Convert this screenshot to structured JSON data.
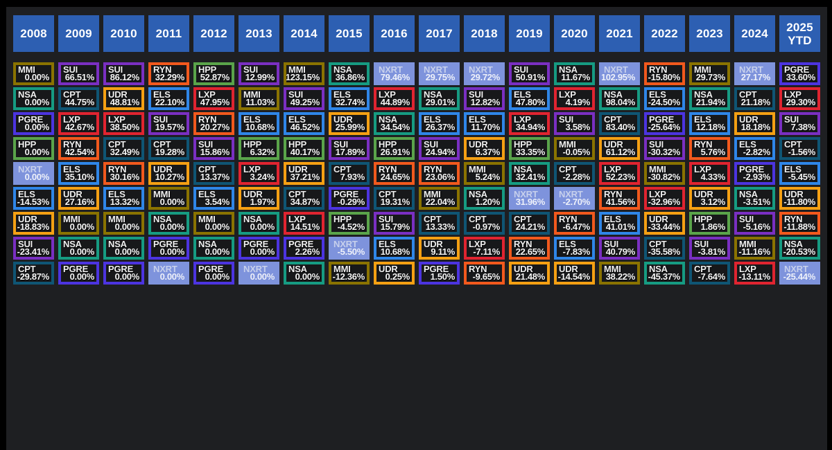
{
  "chart_data": {
    "type": "table",
    "description": "Annual total-return ranking heatmap (periodic table of returns) for REIT tickers by year",
    "highlight_ticker": "NXRT",
    "colors": {
      "MMI": "#8a7300",
      "SUI": "#7a2fc2",
      "RYN": "#f2591d",
      "HPP": "#5aa44a",
      "NSA": "#169b82",
      "CPT": "#0f5574",
      "UDR": "#f5a013",
      "ELS": "#2f86e8",
      "LXP": "#e02430",
      "PGRE": "#4c34e0",
      "NXRT": "#7e93dc"
    },
    "header_bg": "#2d5fb2",
    "panel_bg": "#1e1f22",
    "cell_bg": "#17181a",
    "columns": [
      {
        "year": "2008",
        "cells": [
          {
            "t": "MMI",
            "v": "0.00%"
          },
          {
            "t": "NSA",
            "v": "0.00%"
          },
          {
            "t": "PGRE",
            "v": "0.00%"
          },
          {
            "t": "HPP",
            "v": "0.00%"
          },
          {
            "t": "NXRT",
            "v": "0.00%"
          },
          {
            "t": "ELS",
            "v": "-14.53%"
          },
          {
            "t": "UDR",
            "v": "-18.83%"
          },
          {
            "t": "SUI",
            "v": "-23.41%"
          },
          {
            "t": "CPT",
            "v": "-29.87%"
          }
        ]
      },
      {
        "year": "2009",
        "cells": [
          {
            "t": "SUI",
            "v": "66.51%"
          },
          {
            "t": "CPT",
            "v": "44.75%"
          },
          {
            "t": "LXP",
            "v": "42.67%"
          },
          {
            "t": "RYN",
            "v": "42.54%"
          },
          {
            "t": "ELS",
            "v": "35.10%"
          },
          {
            "t": "UDR",
            "v": "27.16%"
          },
          {
            "t": "MMI",
            "v": "0.00%"
          },
          {
            "t": "NSA",
            "v": "0.00%"
          },
          {
            "t": "PGRE",
            "v": "0.00%"
          }
        ]
      },
      {
        "year": "2010",
        "cells": [
          {
            "t": "SUI",
            "v": "86.12%"
          },
          {
            "t": "UDR",
            "v": "48.81%"
          },
          {
            "t": "LXP",
            "v": "38.50%"
          },
          {
            "t": "CPT",
            "v": "32.49%"
          },
          {
            "t": "RYN",
            "v": "30.16%"
          },
          {
            "t": "ELS",
            "v": "13.32%"
          },
          {
            "t": "MMI",
            "v": "0.00%"
          },
          {
            "t": "NSA",
            "v": "0.00%"
          },
          {
            "t": "PGRE",
            "v": "0.00%"
          }
        ]
      },
      {
        "year": "2011",
        "cells": [
          {
            "t": "RYN",
            "v": "32.29%"
          },
          {
            "t": "ELS",
            "v": "22.10%"
          },
          {
            "t": "SUI",
            "v": "19.57%"
          },
          {
            "t": "CPT",
            "v": "19.28%"
          },
          {
            "t": "UDR",
            "v": "10.27%"
          },
          {
            "t": "MMI",
            "v": "0.00%"
          },
          {
            "t": "NSA",
            "v": "0.00%"
          },
          {
            "t": "PGRE",
            "v": "0.00%"
          },
          {
            "t": "NXRT",
            "v": "0.00%"
          }
        ]
      },
      {
        "year": "2012",
        "cells": [
          {
            "t": "HPP",
            "v": "52.87%"
          },
          {
            "t": "LXP",
            "v": "47.95%"
          },
          {
            "t": "RYN",
            "v": "20.27%"
          },
          {
            "t": "SUI",
            "v": "15.86%"
          },
          {
            "t": "CPT",
            "v": "13.37%"
          },
          {
            "t": "ELS",
            "v": "3.54%"
          },
          {
            "t": "MMI",
            "v": "0.00%"
          },
          {
            "t": "NSA",
            "v": "0.00%"
          },
          {
            "t": "PGRE",
            "v": "0.00%"
          }
        ]
      },
      {
        "year": "2013",
        "cells": [
          {
            "t": "SUI",
            "v": "12.99%"
          },
          {
            "t": "MMI",
            "v": "11.03%"
          },
          {
            "t": "ELS",
            "v": "10.68%"
          },
          {
            "t": "HPP",
            "v": "6.32%"
          },
          {
            "t": "LXP",
            "v": "3.24%"
          },
          {
            "t": "UDR",
            "v": "1.97%"
          },
          {
            "t": "NSA",
            "v": "0.00%"
          },
          {
            "t": "PGRE",
            "v": "0.00%"
          },
          {
            "t": "NXRT",
            "v": "0.00%"
          }
        ]
      },
      {
        "year": "2014",
        "cells": [
          {
            "t": "MMI",
            "v": "123.15%"
          },
          {
            "t": "SUI",
            "v": "49.25%"
          },
          {
            "t": "ELS",
            "v": "46.52%"
          },
          {
            "t": "HPP",
            "v": "40.17%"
          },
          {
            "t": "UDR",
            "v": "37.21%"
          },
          {
            "t": "CPT",
            "v": "34.87%"
          },
          {
            "t": "LXP",
            "v": "14.51%"
          },
          {
            "t": "PGRE",
            "v": "2.26%"
          },
          {
            "t": "NSA",
            "v": "0.00%"
          }
        ]
      },
      {
        "year": "2015",
        "cells": [
          {
            "t": "NSA",
            "v": "36.86%"
          },
          {
            "t": "ELS",
            "v": "32.74%"
          },
          {
            "t": "UDR",
            "v": "25.99%"
          },
          {
            "t": "SUI",
            "v": "17.89%"
          },
          {
            "t": "CPT",
            "v": "7.93%"
          },
          {
            "t": "PGRE",
            "v": "-0.29%"
          },
          {
            "t": "HPP",
            "v": "-4.52%"
          },
          {
            "t": "NXRT",
            "v": "-5.50%"
          },
          {
            "t": "MMI",
            "v": "-12.36%"
          }
        ]
      },
      {
        "year": "2016",
        "cells": [
          {
            "t": "NXRT",
            "v": "79.46%"
          },
          {
            "t": "LXP",
            "v": "44.89%"
          },
          {
            "t": "NSA",
            "v": "34.54%"
          },
          {
            "t": "HPP",
            "v": "26.91%"
          },
          {
            "t": "RYN",
            "v": "24.65%"
          },
          {
            "t": "CPT",
            "v": "19.31%"
          },
          {
            "t": "SUI",
            "v": "15.79%"
          },
          {
            "t": "ELS",
            "v": "10.68%"
          },
          {
            "t": "UDR",
            "v": "0.25%"
          }
        ]
      },
      {
        "year": "2017",
        "cells": [
          {
            "t": "NXRT",
            "v": "29.75%"
          },
          {
            "t": "NSA",
            "v": "29.01%"
          },
          {
            "t": "ELS",
            "v": "26.37%"
          },
          {
            "t": "SUI",
            "v": "24.94%"
          },
          {
            "t": "RYN",
            "v": "23.06%"
          },
          {
            "t": "MMI",
            "v": "22.04%"
          },
          {
            "t": "CPT",
            "v": "13.33%"
          },
          {
            "t": "UDR",
            "v": "9.11%"
          },
          {
            "t": "PGRE",
            "v": "1.50%"
          }
        ]
      },
      {
        "year": "2018",
        "cells": [
          {
            "t": "NXRT",
            "v": "29.72%"
          },
          {
            "t": "SUI",
            "v": "12.82%"
          },
          {
            "t": "ELS",
            "v": "11.70%"
          },
          {
            "t": "UDR",
            "v": "6.37%"
          },
          {
            "t": "MMI",
            "v": "5.24%"
          },
          {
            "t": "NSA",
            "v": "1.20%"
          },
          {
            "t": "CPT",
            "v": "-0.97%"
          },
          {
            "t": "LXP",
            "v": "-7.11%"
          },
          {
            "t": "RYN",
            "v": "-9.65%"
          }
        ]
      },
      {
        "year": "2019",
        "cells": [
          {
            "t": "SUI",
            "v": "50.91%"
          },
          {
            "t": "ELS",
            "v": "47.80%"
          },
          {
            "t": "LXP",
            "v": "34.94%"
          },
          {
            "t": "HPP",
            "v": "33.35%"
          },
          {
            "t": "NSA",
            "v": "32.41%"
          },
          {
            "t": "NXRT",
            "v": "31.96%"
          },
          {
            "t": "CPT",
            "v": "24.21%"
          },
          {
            "t": "RYN",
            "v": "22.65%"
          },
          {
            "t": "UDR",
            "v": "21.48%"
          }
        ]
      },
      {
        "year": "2020",
        "cells": [
          {
            "t": "NSA",
            "v": "11.67%"
          },
          {
            "t": "LXP",
            "v": "4.19%"
          },
          {
            "t": "SUI",
            "v": "3.58%"
          },
          {
            "t": "MMI",
            "v": "-0.05%"
          },
          {
            "t": "CPT",
            "v": "-2.28%"
          },
          {
            "t": "NXRT",
            "v": "-2.70%"
          },
          {
            "t": "RYN",
            "v": "-6.47%"
          },
          {
            "t": "ELS",
            "v": "-7.83%"
          },
          {
            "t": "UDR",
            "v": "-14.54%"
          }
        ]
      },
      {
        "year": "2021",
        "cells": [
          {
            "t": "NXRT",
            "v": "102.95%"
          },
          {
            "t": "NSA",
            "v": "98.04%"
          },
          {
            "t": "CPT",
            "v": "83.40%"
          },
          {
            "t": "UDR",
            "v": "61.12%"
          },
          {
            "t": "LXP",
            "v": "52.23%"
          },
          {
            "t": "RYN",
            "v": "41.56%"
          },
          {
            "t": "ELS",
            "v": "41.01%"
          },
          {
            "t": "SUI",
            "v": "40.79%"
          },
          {
            "t": "MMI",
            "v": "38.22%"
          }
        ]
      },
      {
        "year": "2022",
        "cells": [
          {
            "t": "RYN",
            "v": "-15.80%"
          },
          {
            "t": "ELS",
            "v": "-24.50%"
          },
          {
            "t": "PGRE",
            "v": "-25.64%"
          },
          {
            "t": "SUI",
            "v": "-30.32%"
          },
          {
            "t": "MMI",
            "v": "-30.82%"
          },
          {
            "t": "LXP",
            "v": "-32.96%"
          },
          {
            "t": "UDR",
            "v": "-33.44%"
          },
          {
            "t": "CPT",
            "v": "-35.58%"
          },
          {
            "t": "NSA",
            "v": "-45.37%"
          }
        ]
      },
      {
        "year": "2023",
        "cells": [
          {
            "t": "MMI",
            "v": "29.73%"
          },
          {
            "t": "NSA",
            "v": "21.94%"
          },
          {
            "t": "ELS",
            "v": "12.18%"
          },
          {
            "t": "RYN",
            "v": "5.76%"
          },
          {
            "t": "LXP",
            "v": "4.33%"
          },
          {
            "t": "UDR",
            "v": "3.12%"
          },
          {
            "t": "HPP",
            "v": "1.86%"
          },
          {
            "t": "SUI",
            "v": "-3.81%"
          },
          {
            "t": "CPT",
            "v": "-7.64%"
          }
        ]
      },
      {
        "year": "2024",
        "cells": [
          {
            "t": "NXRT",
            "v": "27.17%"
          },
          {
            "t": "CPT",
            "v": "21.18%"
          },
          {
            "t": "UDR",
            "v": "18.18%"
          },
          {
            "t": "ELS",
            "v": "-2.82%"
          },
          {
            "t": "PGRE",
            "v": "-2.93%"
          },
          {
            "t": "NSA",
            "v": "-3.51%"
          },
          {
            "t": "SUI",
            "v": "-5.16%"
          },
          {
            "t": "MMI",
            "v": "-11.16%"
          },
          {
            "t": "LXP",
            "v": "-13.11%"
          }
        ]
      },
      {
        "year": "2025 YTD",
        "cells": [
          {
            "t": "PGRE",
            "v": "33.60%"
          },
          {
            "t": "LXP",
            "v": "29.30%"
          },
          {
            "t": "SUI",
            "v": "7.38%"
          },
          {
            "t": "CPT",
            "v": "-1.56%"
          },
          {
            "t": "ELS",
            "v": "-5.45%"
          },
          {
            "t": "UDR",
            "v": "-11.80%"
          },
          {
            "t": "RYN",
            "v": "-11.88%"
          },
          {
            "t": "NSA",
            "v": "-20.53%"
          },
          {
            "t": "NXRT",
            "v": "-25.44%"
          }
        ]
      }
    ]
  }
}
